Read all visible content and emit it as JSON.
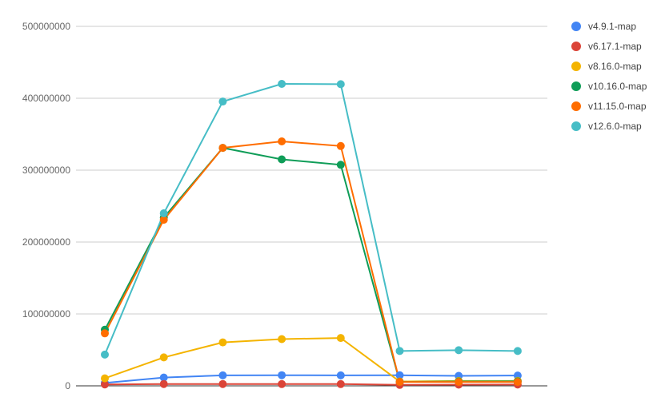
{
  "chart_data": {
    "type": "line",
    "title": "",
    "xlabel": "",
    "ylabel": "",
    "x": [
      1,
      2,
      3,
      4,
      5,
      6,
      7,
      8
    ],
    "ylim": [
      0,
      500000000
    ],
    "yticks": [
      0,
      100000000,
      200000000,
      300000000,
      400000000,
      500000000
    ],
    "ytick_labels": [
      "0",
      "100000000",
      "200000000",
      "300000000",
      "400000000",
      "500000000"
    ],
    "grid": true,
    "legend_position": "right",
    "series": [
      {
        "name": "v4.9.1-map",
        "color": "#4285f4",
        "values": [
          4000000,
          11500000,
          14500000,
          14800000,
          14600000,
          14700000,
          13900000,
          14300000
        ]
      },
      {
        "name": "v6.17.1-map",
        "color": "#db4437",
        "values": [
          2000000,
          2600000,
          2600000,
          2400000,
          2400000,
          1300000,
          1700000,
          1800000
        ]
      },
      {
        "name": "v8.16.0-map",
        "color": "#f4b400",
        "values": [
          10500000,
          39500000,
          60500000,
          65000000,
          66500000,
          6000000,
          6800000,
          6900000
        ]
      },
      {
        "name": "v10.16.0-map",
        "color": "#0f9d58",
        "values": [
          78000000,
          234000000,
          331000000,
          315000000,
          307500000,
          5600000,
          6100000,
          6200000
        ]
      },
      {
        "name": "v11.15.0-map",
        "color": "#ff6d00",
        "values": [
          73000000,
          231000000,
          331000000,
          340000000,
          333500000,
          5500000,
          5500000,
          5400000
        ]
      },
      {
        "name": "v12.6.0-map",
        "color": "#46bdc6",
        "values": [
          43500000,
          240000000,
          395500000,
          420000000,
          419500000,
          48500000,
          49500000,
          48500000
        ]
      }
    ]
  }
}
